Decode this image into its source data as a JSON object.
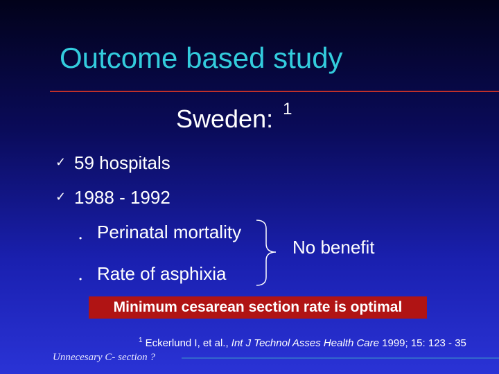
{
  "title": "Outcome based study",
  "subtitle": {
    "text": "Sweden:",
    "superscript": "1"
  },
  "bullets": [
    {
      "check": "ü",
      "label": "59 hospitals"
    },
    {
      "check": "ü",
      "label": "1988 - 1992"
    }
  ],
  "sub_bullets": [
    {
      "marker": "•",
      "label": "Perinatal mortality"
    },
    {
      "marker": "•",
      "label": "Rate of asphixia"
    }
  ],
  "brace_result": "No benefit",
  "callout": "Minimum cesarean section rate is optimal",
  "reference": {
    "superscript": "1",
    "authors": "Eckerlund I, et al., ",
    "journal": "Int J Technol Asses Health Care",
    "details": " 1999; 15: 123 - 35"
  },
  "footer": "Unnecesary C- section ?",
  "colors": {
    "title": "#33ccdd",
    "rule": "#c0302a",
    "callout_bg": "#b01414",
    "footer_rule": "#3366cc"
  }
}
